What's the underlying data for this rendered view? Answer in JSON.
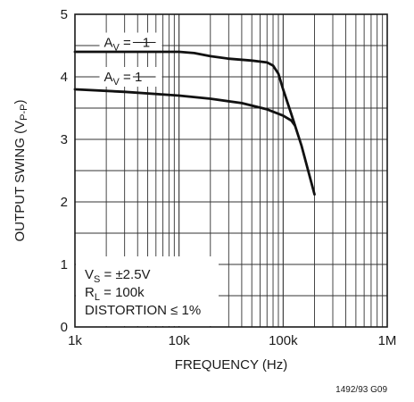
{
  "chart_data": {
    "type": "line",
    "xscale": "log",
    "xlim": [
      1000,
      1000000
    ],
    "ylim": [
      0,
      5
    ],
    "xlabel": "FREQUENCY (Hz)",
    "ylabel_main": "OUTPUT SWING (V",
    "ylabel_sub": "P-P",
    "ylabel_close": ")",
    "xticks": [
      {
        "value": 1000,
        "label": "1k"
      },
      {
        "value": 10000,
        "label": "10k"
      },
      {
        "value": 100000,
        "label": "100k"
      },
      {
        "value": 1000000,
        "label": "1M"
      }
    ],
    "yticks": [
      {
        "value": 0,
        "label": "0"
      },
      {
        "value": 1,
        "label": "1"
      },
      {
        "value": 2,
        "label": "2"
      },
      {
        "value": 3,
        "label": "3"
      },
      {
        "value": 4,
        "label": "4"
      },
      {
        "value": 5,
        "label": "5"
      }
    ],
    "ygrid_step": 0.5,
    "grid": true,
    "series": [
      {
        "name": "AV = −1",
        "label_main": "A",
        "label_sub": "V",
        "label_rest": " = −1",
        "label_anchor": {
          "x": 1900,
          "y": 4.55
        },
        "label_leader": {
          "x": 3600,
          "y": 4.55
        },
        "x": [
          1000,
          5000,
          10000,
          14000,
          20000,
          30000,
          50000,
          70000,
          80000,
          90000,
          100000,
          120000,
          150000,
          200000
        ],
        "y": [
          4.4,
          4.4,
          4.4,
          4.38,
          4.33,
          4.29,
          4.26,
          4.23,
          4.18,
          4.05,
          3.8,
          3.4,
          2.9,
          2.12
        ]
      },
      {
        "name": "AV = 1",
        "label_main": "A",
        "label_sub": "V",
        "label_rest": " = 1",
        "label_anchor": {
          "x": 1900,
          "y": 4.0
        },
        "label_leader": {
          "x": 3600,
          "y": 4.0
        },
        "x": [
          1000,
          3000,
          10000,
          20000,
          40000,
          70000,
          100000,
          120000,
          130000
        ],
        "y": [
          3.8,
          3.76,
          3.7,
          3.65,
          3.58,
          3.48,
          3.38,
          3.3,
          3.22
        ]
      }
    ],
    "annotation_lines": [
      {
        "main": "V",
        "sub": "S",
        "rest": " = ±2.5V"
      },
      {
        "main": "R",
        "sub": "L",
        "rest": " = 100k"
      },
      {
        "main": "DISTORTION ≤ 1%",
        "sub": "",
        "rest": ""
      }
    ],
    "figure_code": "1492/93 G09"
  }
}
